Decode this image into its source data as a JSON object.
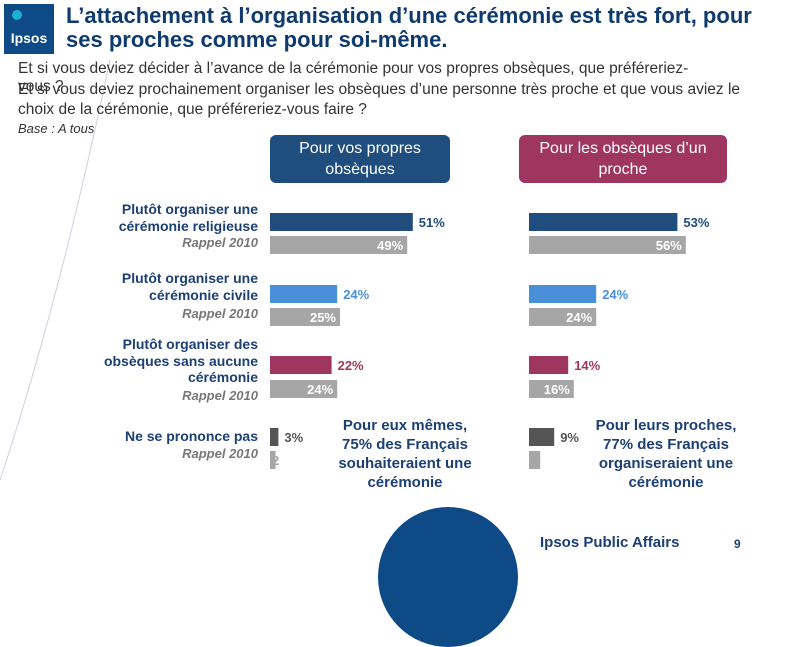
{
  "header": {
    "logo_text": "Ipsos",
    "title": "L’attachement à l’organisation d’une cérémonie est très fort, pour ses proches comme pour soi-même.",
    "question_self": "Et si vous deviez décider à l’avance de la cérémonie pour vos propres obsèques, que préféreriez-vous ?",
    "question_relative": "Et si vous deviez prochainement organiser les obsèques d’une personne très proche et que vous aviez le choix de la cérémonie, que préféreriez-vous faire ?",
    "base": "Base : A tous"
  },
  "panels": {
    "left_title": "Pour vos propres obsèques",
    "right_title": "Pour les obsèques d’un proche"
  },
  "rows": [
    {
      "label": "Plutôt organiser une cérémonie religieuse",
      "rappel": "Rappel 2010"
    },
    {
      "label": "Plutôt organiser une cérémonie civile",
      "rappel": "Rappel 2010"
    },
    {
      "label": "Plutôt organiser des obsèques sans aucune cérémonie",
      "rappel": "Rappel 2010"
    },
    {
      "label": "Ne se prononce pas",
      "rappel": "Rappel 2010"
    }
  ],
  "summaries": {
    "left": "Pour eux mêmes, 75% des Français souhaiteraient une cérémonie",
    "right": "Pour leurs proches, 77% des Français organiseraient une cérémonie"
  },
  "footer": {
    "brand": "Ipsos Public Affairs",
    "page": "9"
  },
  "colors": {
    "religieuse": "#1f4d7e",
    "civile": "#4a90d9",
    "sans": "#9e365f",
    "nsp": "#555555",
    "rappel": "#a6a6a6"
  },
  "chart_data": [
    {
      "type": "bar",
      "orientation": "horizontal",
      "title": "Pour vos propres obsèques",
      "categories": [
        "Plutôt organiser une cérémonie religieuse",
        "Plutôt organiser une cérémonie civile",
        "Plutôt organiser des obsèques sans aucune cérémonie",
        "Ne se prononce pas"
      ],
      "series": [
        {
          "name": "",
          "values": [
            51,
            24,
            22,
            3
          ],
          "labels": [
            "51%",
            "24%",
            "22%",
            "3%"
          ]
        },
        {
          "name": "Rappel 2010",
          "values": [
            49,
            25,
            24,
            2
          ],
          "labels": [
            "49%",
            "25%",
            "24%",
            "2"
          ]
        }
      ]
    },
    {
      "type": "bar",
      "orientation": "horizontal",
      "title": "Pour les obsèques d’un proche",
      "categories": [
        "Plutôt organiser une cérémonie religieuse",
        "Plutôt organiser une cérémonie civile",
        "Plutôt organiser des obsèques sans aucune cérémonie",
        "Ne se prononce pas"
      ],
      "series": [
        {
          "name": "",
          "values": [
            53,
            24,
            14,
            9
          ],
          "labels": [
            "53%",
            "24%",
            "14%",
            "9%"
          ]
        },
        {
          "name": "Rappel 2010",
          "values": [
            56,
            24,
            16,
            4
          ],
          "labels": [
            "56%",
            "24%",
            "16%",
            "4"
          ]
        }
      ]
    }
  ]
}
